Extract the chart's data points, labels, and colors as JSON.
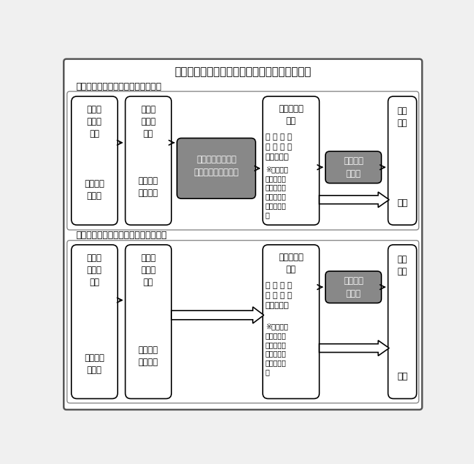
{
  "title": "就学指定に係る市町村教育委員会の事務手続き",
  "section1_label": "【学校選択制を導入している場合】",
  "section2_label": "【学校選択制を導入していない場合】",
  "bg_color": "#f0f0f0",
  "box_bg": "#ffffff",
  "dark_box_bg": "#888888",
  "border_color": "#555555",
  "text_color": "#000000",
  "white_text": "#ffffff"
}
